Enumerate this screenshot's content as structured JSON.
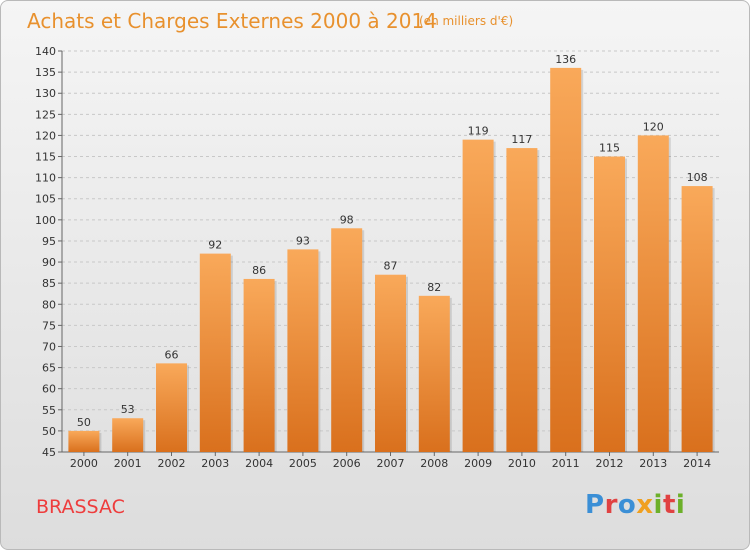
{
  "header": {
    "title": "Achats et Charges Externes 2000 à 2014",
    "subtitle": "(en milliers d'€)"
  },
  "footer": {
    "city": "BRASSAC",
    "logo_text": "Proxiti",
    "logo_colors": [
      "#3b8fd6",
      "#e04242",
      "#3b8fd6",
      "#f0a020",
      "#6cb02a",
      "#e04242",
      "#6cb02a"
    ]
  },
  "chart_data": {
    "type": "bar",
    "title": "Achats et Charges Externes 2000 à 2014",
    "xlabel": "",
    "ylabel": "",
    "categories": [
      "2000",
      "2001",
      "2002",
      "2003",
      "2004",
      "2005",
      "2006",
      "2007",
      "2008",
      "2009",
      "2010",
      "2011",
      "2012",
      "2013",
      "2014"
    ],
    "values": [
      50,
      53,
      66,
      92,
      86,
      93,
      98,
      87,
      82,
      119,
      117,
      136,
      115,
      120,
      108
    ],
    "ylim": [
      45,
      140
    ],
    "ytick_step": 5,
    "grid": true,
    "bar_color_top": "#f9a95a",
    "bar_color_bottom": "#d9701d"
  }
}
